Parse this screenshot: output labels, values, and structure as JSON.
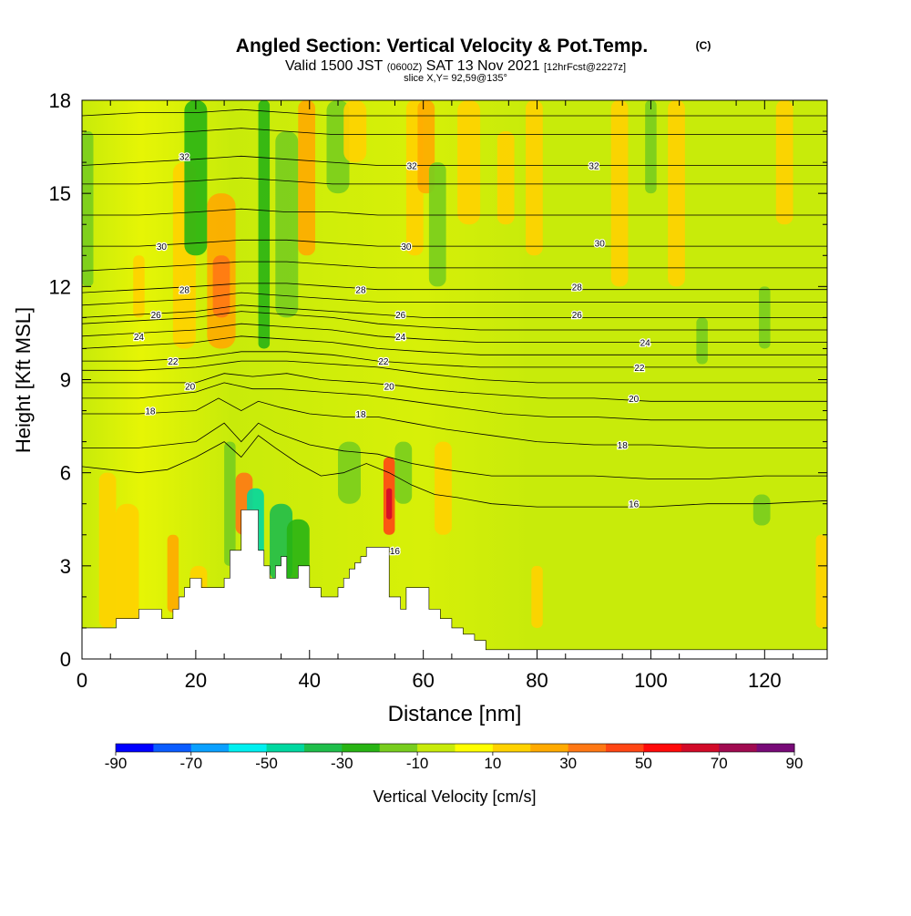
{
  "chart_data": {
    "type": "heatmap",
    "title": "Angled Section: Vertical Velocity & Pot.Temp.",
    "title_unit": "(C)",
    "subtitle": {
      "valid_prefix": "Valid 1500 JST",
      "utc": "(0600Z)",
      "date": "SAT 13 Nov 2021",
      "forecast": "[12hrFcst@2227z]"
    },
    "slice_label": "slice X,Y= 92,59@135°",
    "xlabel": "Distance [nm]",
    "ylabel": "Height [Kft MSL]",
    "xlim": [
      0,
      131
    ],
    "ylim": [
      0,
      18
    ],
    "x_ticks": [
      0,
      20,
      40,
      60,
      80,
      100,
      120
    ],
    "y_ticks": [
      0,
      3,
      6,
      9,
      12,
      15,
      18
    ],
    "colorbar": {
      "label": "Vertical Velocity [cm/s]",
      "tick_labels": [
        "-90",
        "-70",
        "-50",
        "-30",
        "-10",
        "10",
        "30",
        "50",
        "70",
        "90"
      ],
      "colors": [
        "#0000ff",
        "#0a5cff",
        "#0aa0ff",
        "#00f0f0",
        "#00d8a0",
        "#1fbe4b",
        "#28b414",
        "#78cd1e",
        "#c8eb0a",
        "#ffff00",
        "#ffd200",
        "#ffaa00",
        "#ff7814",
        "#ff4614",
        "#ff0a0a",
        "#d20a28",
        "#a00a50",
        "#780a78"
      ]
    },
    "background_value_range": [
      -10,
      10
    ],
    "velocity_cells": [
      {
        "x0": 0,
        "x1": 2,
        "y0": 12,
        "y1": 17,
        "v": -15
      },
      {
        "x0": 3,
        "x1": 6,
        "y0": 1,
        "y1": 6,
        "v": 15
      },
      {
        "x0": 6,
        "x1": 10,
        "y0": 1,
        "y1": 5,
        "v": 12
      },
      {
        "x0": 9,
        "x1": 11,
        "y0": 11,
        "y1": 13,
        "v": 15
      },
      {
        "x0": 15,
        "x1": 17,
        "y0": 1.5,
        "y1": 4,
        "v": 25
      },
      {
        "x0": 16,
        "x1": 20,
        "y0": 10,
        "y1": 16,
        "v": 12
      },
      {
        "x0": 18,
        "x1": 22,
        "y0": 13,
        "y1": 18,
        "v": -25
      },
      {
        "x0": 19,
        "x1": 22,
        "y0": 1,
        "y1": 3,
        "v": 15
      },
      {
        "x0": 22,
        "x1": 27,
        "y0": 10,
        "y1": 15,
        "v": 25
      },
      {
        "x0": 23,
        "x1": 26,
        "y0": 11,
        "y1": 13,
        "v": 35
      },
      {
        "x0": 25,
        "x1": 27,
        "y0": 3,
        "y1": 7,
        "v": -15
      },
      {
        "x0": 27,
        "x1": 30,
        "y0": 4,
        "y1": 6,
        "v": 30
      },
      {
        "x0": 29,
        "x1": 32,
        "y0": 3,
        "y1": 5.5,
        "v": -45
      },
      {
        "x0": 31,
        "x1": 33,
        "y0": 10,
        "y1": 18,
        "v": -25
      },
      {
        "x0": 33,
        "x1": 37,
        "y0": 2.5,
        "y1": 5,
        "v": -40
      },
      {
        "x0": 34,
        "x1": 38,
        "y0": 11,
        "y1": 17,
        "v": -15
      },
      {
        "x0": 36,
        "x1": 40,
        "y0": 2,
        "y1": 4.5,
        "v": -25
      },
      {
        "x0": 38,
        "x1": 41,
        "y0": 13,
        "y1": 18,
        "v": 20
      },
      {
        "x0": 43,
        "x1": 47,
        "y0": 15,
        "y1": 18,
        "v": -15
      },
      {
        "x0": 45,
        "x1": 49,
        "y0": 5,
        "y1": 7,
        "v": -15
      },
      {
        "x0": 46,
        "x1": 50,
        "y0": 16,
        "y1": 18,
        "v": 15
      },
      {
        "x0": 53,
        "x1": 55,
        "y0": 4,
        "y1": 6.5,
        "v": 45
      },
      {
        "x0": 53.5,
        "x1": 54.5,
        "y0": 4.5,
        "y1": 5.5,
        "v": 60
      },
      {
        "x0": 55,
        "x1": 58,
        "y0": 5,
        "y1": 7,
        "v": -15
      },
      {
        "x0": 57,
        "x1": 60,
        "y0": 13,
        "y1": 18,
        "v": 15
      },
      {
        "x0": 59,
        "x1": 62,
        "y0": 15,
        "y1": 18,
        "v": 25
      },
      {
        "x0": 61,
        "x1": 64,
        "y0": 12,
        "y1": 16,
        "v": -15
      },
      {
        "x0": 62,
        "x1": 65,
        "y0": 4,
        "y1": 7,
        "v": 12
      },
      {
        "x0": 66,
        "x1": 70,
        "y0": 14,
        "y1": 18,
        "v": 12
      },
      {
        "x0": 73,
        "x1": 76,
        "y0": 14,
        "y1": 17,
        "v": 15
      },
      {
        "x0": 78,
        "x1": 81,
        "y0": 13,
        "y1": 18,
        "v": 12
      },
      {
        "x0": 79,
        "x1": 81,
        "y0": 1,
        "y1": 3,
        "v": 15
      },
      {
        "x0": 93,
        "x1": 96,
        "y0": 12,
        "y1": 18,
        "v": 12
      },
      {
        "x0": 99,
        "x1": 101,
        "y0": 15,
        "y1": 18,
        "v": -15
      },
      {
        "x0": 103,
        "x1": 106,
        "y0": 12,
        "y1": 18,
        "v": 12
      },
      {
        "x0": 108,
        "x1": 110,
        "y0": 9.5,
        "y1": 11,
        "v": -15
      },
      {
        "x0": 118,
        "x1": 121,
        "y0": 4.3,
        "y1": 5.3,
        "v": -15
      },
      {
        "x0": 119,
        "x1": 121,
        "y0": 10,
        "y1": 12,
        "v": -15
      },
      {
        "x0": 122,
        "x1": 125,
        "y0": 14,
        "y1": 18,
        "v": 12
      },
      {
        "x0": 129,
        "x1": 131,
        "y0": 1,
        "y1": 4,
        "v": 15
      }
    ],
    "terrain": {
      "x": [
        0,
        5,
        6,
        9,
        10,
        13,
        14,
        16,
        17,
        18,
        19,
        21,
        22,
        25,
        26,
        28,
        29,
        31,
        32,
        33,
        34,
        35,
        36,
        38,
        40,
        42,
        44,
        45,
        46,
        47,
        48,
        49,
        50,
        53,
        54,
        56,
        57,
        60,
        61,
        63,
        65,
        67,
        69,
        71,
        131
      ],
      "y": [
        1.0,
        1.0,
        1.3,
        1.3,
        1.6,
        1.6,
        1.3,
        1.6,
        2.0,
        2.3,
        2.6,
        2.3,
        2.3,
        2.6,
        3.5,
        4.8,
        4.8,
        3.5,
        3.0,
        2.6,
        3.0,
        3.3,
        2.6,
        3.0,
        2.3,
        2.0,
        2.0,
        2.3,
        2.6,
        2.9,
        3.1,
        3.3,
        3.6,
        3.6,
        2.0,
        1.6,
        2.3,
        2.3,
        1.6,
        1.3,
        1.0,
        0.8,
        0.6,
        0.3,
        0.3
      ]
    },
    "theta_contours": [
      {
        "label": "16",
        "x": [
          0,
          5,
          10,
          15,
          20,
          25,
          28,
          31,
          34,
          38,
          42,
          46,
          50,
          54,
          58,
          62,
          66,
          72,
          80,
          90,
          100,
          110,
          120,
          131
        ],
        "y": [
          6.2,
          6.1,
          6.0,
          6.1,
          6.5,
          7.0,
          6.5,
          7.2,
          6.8,
          6.3,
          5.9,
          6.0,
          6.3,
          6.0,
          5.6,
          5.3,
          5.2,
          5.0,
          4.9,
          4.9,
          4.9,
          5.0,
          5.0,
          5.1
        ],
        "label_at": [
          [
            55,
            3.5
          ],
          [
            97,
            5.0
          ]
        ]
      },
      {
        "label": "",
        "x": [
          0,
          10,
          20,
          25,
          28,
          31,
          34,
          40,
          46,
          52,
          58,
          64,
          72,
          80,
          90,
          100,
          110,
          120,
          131
        ],
        "y": [
          6.8,
          6.8,
          7.0,
          7.6,
          7.0,
          7.6,
          7.3,
          6.9,
          6.7,
          6.6,
          6.3,
          6.1,
          5.9,
          5.9,
          5.9,
          5.8,
          5.8,
          5.9,
          5.9
        ]
      },
      {
        "label": "18",
        "x": [
          0,
          10,
          20,
          24,
          28,
          31,
          35,
          40,
          46,
          52,
          58,
          64,
          72,
          80,
          90,
          100,
          110,
          120,
          131
        ],
        "y": [
          7.9,
          7.9,
          8.0,
          8.4,
          8.0,
          8.3,
          8.1,
          7.9,
          7.8,
          7.8,
          7.6,
          7.4,
          7.2,
          7.0,
          6.9,
          6.9,
          6.8,
          6.8,
          6.8
        ],
        "label_at": [
          [
            12,
            8.0
          ],
          [
            49,
            7.9
          ],
          [
            95,
            6.9
          ]
        ]
      },
      {
        "label": "",
        "x": [
          0,
          10,
          20,
          25,
          30,
          35,
          42,
          50,
          58,
          66,
          74,
          82,
          90,
          100,
          110,
          120,
          131
        ],
        "y": [
          8.4,
          8.4,
          8.6,
          8.9,
          8.7,
          8.7,
          8.6,
          8.5,
          8.3,
          8.1,
          7.9,
          7.8,
          7.8,
          7.7,
          7.7,
          7.7,
          7.7
        ]
      },
      {
        "label": "20",
        "x": [
          0,
          10,
          20,
          25,
          30,
          36,
          42,
          50,
          56,
          60,
          66,
          74,
          82,
          90,
          100,
          110,
          120,
          131
        ],
        "y": [
          8.9,
          8.9,
          8.9,
          9.2,
          9.1,
          9.2,
          9.0,
          8.9,
          8.8,
          8.7,
          8.6,
          8.5,
          8.4,
          8.4,
          8.3,
          8.3,
          8.3,
          8.3
        ],
        "label_at": [
          [
            19,
            8.8
          ],
          [
            54,
            8.8
          ],
          [
            97,
            8.4
          ]
        ]
      },
      {
        "label": "",
        "x": [
          0,
          10,
          20,
          28,
          36,
          44,
          52,
          60,
          70,
          80,
          90,
          100,
          110,
          120,
          131
        ],
        "y": [
          9.3,
          9.3,
          9.4,
          9.6,
          9.6,
          9.5,
          9.4,
          9.2,
          9.0,
          8.9,
          8.9,
          8.9,
          8.9,
          8.9,
          8.9
        ]
      },
      {
        "label": "22",
        "x": [
          0,
          10,
          20,
          28,
          36,
          44,
          52,
          60,
          70,
          80,
          90,
          100,
          110,
          120,
          131
        ],
        "y": [
          9.6,
          9.6,
          9.7,
          9.9,
          9.9,
          9.8,
          9.6,
          9.5,
          9.4,
          9.4,
          9.4,
          9.4,
          9.4,
          9.4,
          9.4
        ],
        "label_at": [
          [
            16,
            9.6
          ],
          [
            53,
            9.6
          ],
          [
            98,
            9.4
          ]
        ]
      },
      {
        "label": "",
        "x": [
          0,
          10,
          20,
          28,
          36,
          44,
          52,
          60,
          70,
          80,
          90,
          100,
          110,
          120,
          131
        ],
        "y": [
          10.0,
          10.1,
          10.2,
          10.4,
          10.3,
          10.2,
          10.0,
          9.9,
          9.8,
          9.8,
          9.8,
          9.8,
          9.8,
          9.8,
          9.8
        ]
      },
      {
        "label": "24",
        "x": [
          0,
          10,
          20,
          28,
          36,
          44,
          52,
          60,
          70,
          80,
          90,
          100,
          110,
          120,
          131
        ],
        "y": [
          10.4,
          10.5,
          10.6,
          10.8,
          10.7,
          10.6,
          10.4,
          10.3,
          10.2,
          10.2,
          10.2,
          10.2,
          10.2,
          10.2,
          10.2
        ],
        "label_at": [
          [
            10,
            10.4
          ],
          [
            56,
            10.4
          ],
          [
            99,
            10.2
          ]
        ]
      },
      {
        "label": "",
        "x": [
          0,
          10,
          20,
          28,
          36,
          44,
          52,
          60,
          70,
          80,
          90,
          100,
          110,
          120,
          131
        ],
        "y": [
          10.8,
          10.9,
          11.0,
          11.2,
          11.1,
          11.0,
          10.8,
          10.7,
          10.6,
          10.6,
          10.6,
          10.6,
          10.6,
          10.6,
          10.6
        ]
      },
      {
        "label": "26",
        "x": [
          0,
          10,
          20,
          28,
          36,
          44,
          52,
          60,
          70,
          80,
          90,
          100,
          110,
          120,
          131
        ],
        "y": [
          11.0,
          11.1,
          11.2,
          11.4,
          11.3,
          11.2,
          11.1,
          11.0,
          11.0,
          11.0,
          11.0,
          11.0,
          11.0,
          11.0,
          11.0
        ],
        "label_at": [
          [
            13,
            11.1
          ],
          [
            56,
            11.1
          ],
          [
            87,
            11.1
          ]
        ]
      },
      {
        "label": "",
        "x": [
          0,
          10,
          20,
          28,
          36,
          44,
          52,
          60,
          70,
          80,
          90,
          100,
          110,
          120,
          131
        ],
        "y": [
          11.4,
          11.5,
          11.6,
          11.8,
          11.7,
          11.6,
          11.5,
          11.5,
          11.5,
          11.5,
          11.5,
          11.5,
          11.5,
          11.5,
          11.5
        ]
      },
      {
        "label": "28",
        "x": [
          0,
          10,
          20,
          28,
          36,
          44,
          52,
          60,
          70,
          80,
          90,
          100,
          110,
          120,
          131
        ],
        "y": [
          11.8,
          11.9,
          12.0,
          12.1,
          12.1,
          12.0,
          11.9,
          11.9,
          11.9,
          11.9,
          11.9,
          11.9,
          11.9,
          11.9,
          11.9
        ],
        "label_at": [
          [
            18,
            11.9
          ],
          [
            49,
            11.9
          ],
          [
            87,
            12.0
          ]
        ]
      },
      {
        "label": "",
        "x": [
          0,
          10,
          20,
          28,
          36,
          44,
          52,
          60,
          70,
          80,
          90,
          100,
          110,
          120,
          131
        ],
        "y": [
          12.5,
          12.6,
          12.7,
          12.8,
          12.8,
          12.7,
          12.6,
          12.6,
          12.6,
          12.6,
          12.6,
          12.6,
          12.6,
          12.6,
          12.6
        ]
      },
      {
        "label": "30",
        "x": [
          0,
          10,
          20,
          28,
          36,
          44,
          52,
          60,
          70,
          80,
          90,
          100,
          110,
          120,
          131
        ],
        "y": [
          13.3,
          13.3,
          13.4,
          13.5,
          13.5,
          13.4,
          13.3,
          13.3,
          13.3,
          13.3,
          13.3,
          13.3,
          13.3,
          13.3,
          13.3
        ],
        "label_at": [
          [
            14,
            13.3
          ],
          [
            57,
            13.3
          ],
          [
            91,
            13.4
          ]
        ]
      },
      {
        "label": "",
        "x": [
          0,
          10,
          20,
          28,
          36,
          44,
          52,
          60,
          70,
          80,
          90,
          100,
          110,
          120,
          131
        ],
        "y": [
          14.3,
          14.3,
          14.4,
          14.5,
          14.4,
          14.4,
          14.3,
          14.3,
          14.3,
          14.3,
          14.3,
          14.3,
          14.3,
          14.3,
          14.3
        ]
      },
      {
        "label": "",
        "x": [
          0,
          10,
          20,
          28,
          36,
          44,
          52,
          60,
          70,
          80,
          90,
          100,
          110,
          120,
          131
        ],
        "y": [
          15.3,
          15.3,
          15.4,
          15.5,
          15.4,
          15.3,
          15.3,
          15.3,
          15.3,
          15.3,
          15.3,
          15.3,
          15.3,
          15.3,
          15.3
        ]
      },
      {
        "label": "32",
        "x": [
          0,
          10,
          20,
          28,
          36,
          44,
          52,
          60,
          70,
          80,
          90,
          100,
          110,
          120,
          131
        ],
        "y": [
          15.9,
          16.0,
          16.1,
          16.2,
          16.1,
          16.0,
          15.9,
          15.9,
          15.9,
          15.9,
          15.9,
          15.9,
          15.9,
          15.9,
          15.9
        ],
        "label_at": [
          [
            18,
            16.2
          ],
          [
            58,
            15.9
          ],
          [
            90,
            15.9
          ]
        ]
      },
      {
        "label": "",
        "x": [
          0,
          10,
          20,
          28,
          36,
          44,
          52,
          60,
          70,
          80,
          90,
          100,
          110,
          120,
          131
        ],
        "y": [
          16.9,
          16.9,
          17.0,
          17.1,
          17.0,
          16.9,
          16.9,
          16.9,
          16.9,
          16.9,
          16.9,
          16.9,
          16.9,
          16.9,
          16.9
        ]
      },
      {
        "label": "",
        "x": [
          0,
          10,
          20,
          28,
          36,
          44,
          52,
          60,
          70,
          80,
          90,
          100,
          110,
          120,
          131
        ],
        "y": [
          17.5,
          17.6,
          17.6,
          17.7,
          17.6,
          17.5,
          17.5,
          17.5,
          17.5,
          17.5,
          17.5,
          17.5,
          17.5,
          17.5,
          17.5
        ]
      }
    ]
  }
}
